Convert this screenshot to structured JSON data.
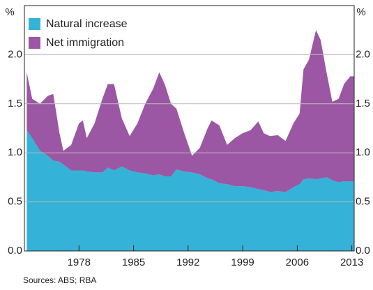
{
  "chart_data": {
    "type": "stacked-area",
    "y_unit_left": "%",
    "y_unit_right": "%",
    "source": "Sources:  ABS; RBA",
    "x": [
      1971.3,
      1972,
      1973,
      1974,
      1974.7,
      1975.5,
      1976,
      1977,
      1978,
      1978.5,
      1979,
      1980,
      1981,
      1981.7,
      1982.5,
      1983.5,
      1984.5,
      1985.5,
      1986.5,
      1987.5,
      1988.3,
      1989,
      1989.8,
      1990.5,
      1991.5,
      1992.5,
      1993.5,
      1994.5,
      1995,
      1996,
      1997,
      1998,
      1999,
      2000,
      2001,
      2001.7,
      2002.5,
      2003.5,
      2004.5,
      2005.5,
      2006.3,
      2006.8,
      2007.5,
      2008.4,
      2009,
      2009.8,
      2010.5,
      2011.3,
      2012,
      2012.8,
      2013.25
    ],
    "series": [
      {
        "name": "Natural increase",
        "color": "#35b2d8",
        "values": [
          1.23,
          1.15,
          1.02,
          0.97,
          0.92,
          0.91,
          0.88,
          0.82,
          0.82,
          0.82,
          0.81,
          0.8,
          0.8,
          0.85,
          0.82,
          0.86,
          0.82,
          0.8,
          0.79,
          0.77,
          0.78,
          0.76,
          0.76,
          0.83,
          0.81,
          0.8,
          0.78,
          0.74,
          0.73,
          0.69,
          0.68,
          0.66,
          0.66,
          0.65,
          0.63,
          0.62,
          0.6,
          0.61,
          0.6,
          0.65,
          0.68,
          0.73,
          0.74,
          0.73,
          0.74,
          0.75,
          0.72,
          0.7,
          0.71,
          0.71,
          0.71
        ]
      },
      {
        "name": "Net immigration",
        "color": "#9b57a3",
        "values": [
          0.59,
          0.4,
          0.48,
          0.61,
          0.68,
          0.29,
          0.14,
          0.26,
          0.48,
          0.51,
          0.34,
          0.5,
          0.75,
          0.85,
          0.88,
          0.49,
          0.35,
          0.5,
          0.71,
          0.88,
          1.04,
          0.94,
          0.74,
          0.62,
          0.39,
          0.17,
          0.27,
          0.51,
          0.6,
          0.59,
          0.4,
          0.49,
          0.54,
          0.58,
          0.69,
          0.58,
          0.57,
          0.57,
          0.52,
          0.65,
          0.72,
          1.12,
          1.21,
          1.52,
          1.41,
          1.05,
          0.8,
          0.85,
          0.99,
          1.07,
          1.07
        ]
      }
    ],
    "xlim": [
      1971,
      2013.3
    ],
    "xticks": [
      1978,
      1985,
      1992,
      1999,
      2006,
      2013
    ],
    "ylim": [
      0,
      2.5
    ],
    "yticks": [
      {
        "value": 0,
        "label": "0.0"
      },
      {
        "value": 0.5,
        "label": "0.5"
      },
      {
        "value": 1,
        "label": "1.0"
      },
      {
        "value": 1.5,
        "label": "1.5"
      },
      {
        "value": 2,
        "label": "2.0"
      }
    ],
    "grid": true,
    "legend": "top-left"
  }
}
